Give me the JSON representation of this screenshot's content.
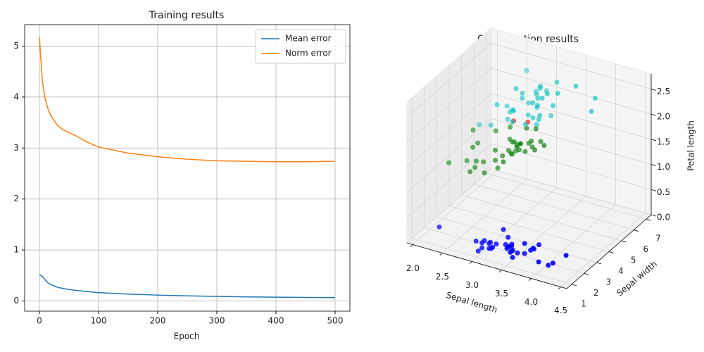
{
  "chart_data": [
    {
      "type": "line",
      "title": "Training results",
      "xlabel": "Epoch",
      "x": [
        0,
        5,
        10,
        15,
        20,
        30,
        40,
        50,
        60,
        80,
        100,
        150,
        200,
        250,
        300,
        350,
        400,
        450,
        500
      ],
      "series": [
        {
          "name": "Mean error",
          "color": "#1f77b4",
          "values": [
            0.52,
            0.48,
            0.41,
            0.35,
            0.32,
            0.27,
            0.245,
            0.225,
            0.21,
            0.185,
            0.165,
            0.135,
            0.115,
            0.1,
            0.09,
            0.08,
            0.075,
            0.07,
            0.065
          ]
        },
        {
          "name": "Norm error",
          "color": "#ff7f0e",
          "values": [
            5.17,
            4.3,
            3.95,
            3.75,
            3.62,
            3.45,
            3.36,
            3.3,
            3.25,
            3.12,
            3.02,
            2.9,
            2.83,
            2.78,
            2.75,
            2.74,
            2.73,
            2.73,
            2.74
          ]
        }
      ],
      "xlim": [
        -25,
        525
      ],
      "xticks": [
        0,
        100,
        200,
        300,
        400,
        500
      ],
      "ylim": [
        -0.2,
        5.42
      ],
      "yticks": [
        0,
        1,
        2,
        3,
        4,
        5
      ],
      "grid": true,
      "legend": "upper right"
    },
    {
      "type": "scatter3d",
      "title": "Classification results",
      "xlabel": "Sepal length",
      "ylabel": "Sepal width",
      "zlabel": "Petal length",
      "xlim": [
        1.9,
        4.6
      ],
      "ylim": [
        0.6,
        7.4
      ],
      "zlim": [
        0,
        2.8
      ],
      "xticks": [
        {
          "value": 2,
          "label": "2.0"
        },
        2.5,
        {
          "value": 3,
          "label": "3.0"
        },
        3.5,
        {
          "value": 4,
          "label": "4.0"
        },
        4.5
      ],
      "yticks": [
        1,
        2,
        3,
        4,
        5,
        6,
        7
      ],
      "zticks": [
        {
          "value": 0,
          "label": "0.0"
        },
        0.5,
        {
          "value": 1,
          "label": "1.0"
        },
        1.5,
        {
          "value": 2,
          "label": "2.0"
        },
        2.5
      ],
      "grid": true,
      "series": [
        {
          "color": "#0000ff",
          "x": [
            3.5,
            3.0,
            3.2,
            3.1,
            3.6,
            3.9,
            3.4,
            3.4,
            2.9,
            3.1,
            3.7,
            3.4,
            3.0,
            3.0,
            4.0,
            4.4,
            3.9,
            3.5,
            3.8,
            3.8,
            3.4,
            3.7,
            3.6,
            3.3,
            3.4,
            3.0,
            3.4,
            3.5,
            3.2,
            3.1,
            4.1,
            4.2,
            2.3,
            3.2,
            3.5
          ],
          "y": [
            1.4,
            1.4,
            1.3,
            1.5,
            1.4,
            1.7,
            1.4,
            1.5,
            1.4,
            1.5,
            1.5,
            1.6,
            1.4,
            1.1,
            1.2,
            1.5,
            1.3,
            1.4,
            1.7,
            1.5,
            1.7,
            1.5,
            1.0,
            1.7,
            1.9,
            1.6,
            1.6,
            1.5,
            1.6,
            1.6,
            1.5,
            1.4,
            1.3,
            1.2,
            1.3
          ],
          "z": [
            0.2,
            0.2,
            0.2,
            0.2,
            0.2,
            0.4,
            0.3,
            0.2,
            0.2,
            0.1,
            0.2,
            0.2,
            0.1,
            0.1,
            0.2,
            0.4,
            0.4,
            0.3,
            0.3,
            0.3,
            0.2,
            0.4,
            0.2,
            0.5,
            0.2,
            0.2,
            0.4,
            0.2,
            0.2,
            0.2,
            0.1,
            0.2,
            0.3,
            0.2,
            0.2
          ]
        },
        {
          "color": "#008000",
          "x": [
            3.2,
            3.2,
            3.1,
            2.3,
            2.8,
            2.8,
            3.3,
            2.4,
            2.9,
            2.7,
            2.0,
            3.0,
            2.2,
            2.9,
            2.9,
            3.1,
            3.0,
            2.7,
            2.2,
            2.5,
            3.2,
            2.8,
            2.5,
            2.8,
            2.9,
            3.0,
            2.8,
            3.0,
            2.9,
            2.6,
            2.4,
            2.4,
            2.7,
            2.7,
            3.0,
            3.4,
            3.1,
            2.3
          ],
          "y": [
            4.7,
            4.5,
            4.9,
            4.0,
            4.6,
            4.5,
            4.7,
            3.3,
            4.6,
            3.9,
            3.5,
            4.2,
            4.0,
            4.7,
            3.6,
            4.4,
            4.5,
            4.1,
            4.5,
            3.9,
            4.8,
            4.0,
            4.9,
            4.7,
            4.3,
            4.4,
            4.8,
            5.0,
            4.5,
            3.5,
            3.8,
            3.7,
            3.9,
            5.1,
            4.5,
            4.5,
            4.7,
            4.4
          ],
          "z": [
            1.4,
            1.5,
            1.5,
            1.3,
            1.5,
            1.3,
            1.6,
            1.0,
            1.3,
            1.4,
            1.0,
            1.5,
            1.0,
            1.4,
            1.3,
            1.4,
            1.5,
            1.0,
            1.5,
            1.1,
            1.8,
            1.3,
            1.5,
            1.2,
            1.3,
            1.4,
            1.4,
            1.7,
            1.5,
            1.0,
            1.1,
            1.0,
            1.2,
            1.6,
            1.5,
            1.6,
            1.5,
            1.3
          ]
        },
        {
          "color": "#ff0000",
          "x": [
            2.8,
            3.0
          ],
          "y": [
            4.9,
            5.1
          ],
          "z": [
            1.8,
            1.8
          ]
        },
        {
          "color": "#00bfbf",
          "x": [
            3.3,
            2.7,
            3.0,
            2.9,
            3.0,
            3.0,
            2.5,
            2.9,
            2.5,
            3.6,
            3.2,
            2.7,
            3.0,
            2.5,
            2.8,
            3.2,
            3.0,
            3.8,
            2.6,
            2.2,
            3.2,
            2.8,
            2.8,
            2.7,
            3.3,
            3.2,
            2.8,
            3.0,
            2.8,
            3.0,
            2.8,
            3.8,
            2.8,
            3.0,
            3.4,
            3.1,
            3.1,
            3.1
          ],
          "y": [
            6.0,
            5.1,
            5.9,
            5.6,
            5.8,
            6.6,
            4.5,
            6.3,
            5.8,
            6.1,
            5.1,
            5.3,
            5.5,
            5.0,
            5.1,
            5.3,
            5.5,
            6.7,
            6.9,
            5.0,
            5.7,
            4.9,
            6.7,
            4.9,
            5.7,
            6.0,
            4.8,
            4.9,
            5.6,
            5.8,
            6.1,
            6.4,
            5.6,
            6.1,
            5.6,
            5.5,
            5.4,
            5.6
          ],
          "z": [
            2.5,
            1.9,
            2.1,
            1.8,
            2.2,
            2.1,
            1.7,
            1.8,
            1.8,
            2.5,
            2.0,
            1.9,
            2.1,
            2.0,
            2.4,
            2.3,
            1.8,
            2.2,
            2.3,
            1.5,
            2.3,
            2.0,
            2.0,
            1.8,
            2.1,
            1.8,
            1.8,
            1.8,
            2.1,
            1.6,
            1.9,
            2.0,
            2.2,
            2.3,
            2.4,
            1.8,
            2.1,
            2.4
          ]
        }
      ]
    }
  ]
}
